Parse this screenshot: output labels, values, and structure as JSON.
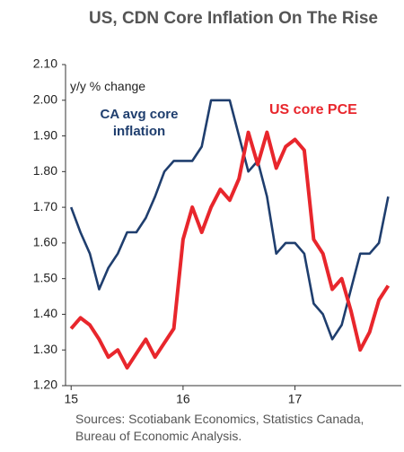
{
  "chart_data": {
    "type": "line",
    "title": "US, CDN Core Inflation On The Rise",
    "annotation": "y/y % change",
    "source": "Sources: Scotiabank Economics, Statistics Canada, Bureau of Economic Analysis.",
    "x": [
      15,
      15.083,
      15.167,
      15.25,
      15.333,
      15.417,
      15.5,
      15.583,
      15.667,
      15.75,
      15.833,
      15.917,
      16,
      16.083,
      16.167,
      16.25,
      16.333,
      16.417,
      16.5,
      16.583,
      16.667,
      16.75,
      16.833,
      16.917,
      17,
      17.083,
      17.167,
      17.25,
      17.333,
      17.417,
      17.5,
      17.583,
      17.667,
      17.75,
      17.833
    ],
    "series": [
      {
        "name": "CA avg core inflation",
        "color": "#1f3e6e",
        "values": [
          1.7,
          1.63,
          1.57,
          1.47,
          1.53,
          1.57,
          1.63,
          1.63,
          1.67,
          1.73,
          1.8,
          1.83,
          1.83,
          1.83,
          1.87,
          2.0,
          2.0,
          2.0,
          1.9,
          1.8,
          1.83,
          1.73,
          1.57,
          1.6,
          1.6,
          1.57,
          1.43,
          1.4,
          1.33,
          1.37,
          1.47,
          1.57,
          1.57,
          1.6,
          1.73
        ]
      },
      {
        "name": "US core PCE",
        "color": "#e8262c",
        "values": [
          1.36,
          1.39,
          1.37,
          1.33,
          1.28,
          1.3,
          1.25,
          1.29,
          1.33,
          1.28,
          1.32,
          1.36,
          1.61,
          1.7,
          1.63,
          1.7,
          1.75,
          1.72,
          1.78,
          1.91,
          1.82,
          1.91,
          1.81,
          1.87,
          1.89,
          1.86,
          1.61,
          1.57,
          1.47,
          1.5,
          1.41,
          1.3,
          1.35,
          1.44,
          1.48
        ]
      }
    ],
    "xlim": [
      14.95,
      17.95
    ],
    "xticks": [
      15,
      16,
      17
    ],
    "ylim": [
      1.2,
      2.1
    ],
    "yticks": [
      {
        "value": 1.2,
        "label": "1.20"
      },
      {
        "value": 1.3,
        "label": "1.30"
      },
      {
        "value": 1.4,
        "label": "1.40"
      },
      {
        "value": 1.5,
        "label": "1.50"
      },
      {
        "value": 1.6,
        "label": "1.60"
      },
      {
        "value": 1.7,
        "label": "1.70"
      },
      {
        "value": 1.8,
        "label": "1.80"
      },
      {
        "value": 1.9,
        "label": "1.90"
      },
      {
        "value": 2.0,
        "label": "2.00"
      },
      {
        "value": 2.1,
        "label": "2.10"
      }
    ]
  }
}
